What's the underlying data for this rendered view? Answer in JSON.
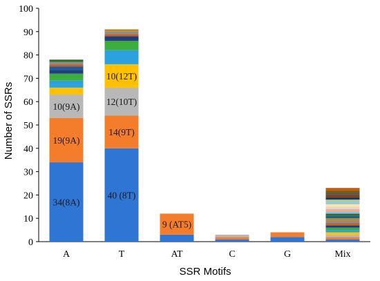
{
  "chart_data": {
    "type": "bar",
    "stacked": true,
    "categories": [
      "A",
      "T",
      "AT",
      "C",
      "G",
      "Mix"
    ],
    "xlabel": "SSR Motifs",
    "ylabel": "Number of SSRs",
    "ylim": [
      0,
      100
    ],
    "yticks": [
      0,
      10,
      20,
      30,
      40,
      50,
      60,
      70,
      80,
      90,
      100
    ],
    "grid": false,
    "bars": [
      {
        "category": "A",
        "total": 78,
        "segments": [
          {
            "value": 34,
            "color": "#2F75D3",
            "label": "34(8A)"
          },
          {
            "value": 19,
            "color": "#F47D2C",
            "label": "19(9A)"
          },
          {
            "value": 10,
            "color": "#B8B8B8",
            "label": "10(9A)"
          },
          {
            "value": 3,
            "color": "#FFC000",
            "label": ""
          },
          {
            "value": 3,
            "color": "#2BA2DD",
            "label": ""
          },
          {
            "value": 3,
            "color": "#3DAE3D",
            "label": ""
          },
          {
            "value": 1.5,
            "color": "#1F3E7A",
            "label": ""
          },
          {
            "value": 1.5,
            "color": "#1C5B9C",
            "label": ""
          },
          {
            "value": 1,
            "color": "#C5612A",
            "label": ""
          },
          {
            "value": 1,
            "color": "#8C8C8C",
            "label": ""
          },
          {
            "value": 1,
            "color": "#2A6E2A",
            "label": ""
          }
        ]
      },
      {
        "category": "T",
        "total": 91,
        "segments": [
          {
            "value": 40,
            "color": "#2F75D3",
            "label": "40 (8T)"
          },
          {
            "value": 14,
            "color": "#F47D2C",
            "label": "14(9T)"
          },
          {
            "value": 12,
            "color": "#B8B8B8",
            "label": "12(10T)"
          },
          {
            "value": 10,
            "color": "#FFC000",
            "label": "10(12T)"
          },
          {
            "value": 6,
            "color": "#2BA2DD",
            "label": ""
          },
          {
            "value": 4,
            "color": "#3DAE3D",
            "label": ""
          },
          {
            "value": 2,
            "color": "#1F3E7A",
            "label": ""
          },
          {
            "value": 1,
            "color": "#C5612A",
            "label": ""
          },
          {
            "value": 1,
            "color": "#8C8C8C",
            "label": ""
          },
          {
            "value": 1,
            "color": "#B58B2A",
            "label": ""
          }
        ]
      },
      {
        "category": "AT",
        "total": 12,
        "segments": [
          {
            "value": 3,
            "color": "#2F75D3",
            "label": ""
          },
          {
            "value": 9,
            "color": "#F47D2C",
            "label": "9 (AT5)"
          }
        ]
      },
      {
        "category": "C",
        "total": 3,
        "segments": [
          {
            "value": 1,
            "color": "#2F75D3",
            "label": ""
          },
          {
            "value": 1,
            "color": "#F47D2C",
            "label": ""
          },
          {
            "value": 1,
            "color": "#B8B8B8",
            "label": ""
          }
        ]
      },
      {
        "category": "G",
        "total": 4,
        "segments": [
          {
            "value": 2,
            "color": "#2F75D3",
            "label": ""
          },
          {
            "value": 2,
            "color": "#F47D2C",
            "label": ""
          }
        ]
      },
      {
        "category": "Mix",
        "total": 23,
        "segments": [
          {
            "value": 1,
            "color": "#2F75D3",
            "label": ""
          },
          {
            "value": 1,
            "color": "#F47D2C",
            "label": ""
          },
          {
            "value": 1,
            "color": "#B8B8B8",
            "label": ""
          },
          {
            "value": 1,
            "color": "#FFC000",
            "label": ""
          },
          {
            "value": 1,
            "color": "#2BA2DD",
            "label": ""
          },
          {
            "value": 1,
            "color": "#3DAE3D",
            "label": ""
          },
          {
            "value": 1,
            "color": "#1F3E7A",
            "label": ""
          },
          {
            "value": 1,
            "color": "#C5612A",
            "label": ""
          },
          {
            "value": 1,
            "color": "#8C8C8C",
            "label": ""
          },
          {
            "value": 1,
            "color": "#B58B2A",
            "label": ""
          },
          {
            "value": 1,
            "color": "#1C5B9C",
            "label": ""
          },
          {
            "value": 1,
            "color": "#2A6E2A",
            "label": ""
          },
          {
            "value": 1,
            "color": "#9FB8E8",
            "label": ""
          },
          {
            "value": 1,
            "color": "#F4B183",
            "label": ""
          },
          {
            "value": 1,
            "color": "#D9D9D9",
            "label": ""
          },
          {
            "value": 1,
            "color": "#FFE699",
            "label": ""
          },
          {
            "value": 1,
            "color": "#9DC3E6",
            "label": ""
          },
          {
            "value": 1,
            "color": "#A9D18E",
            "label": ""
          },
          {
            "value": 1,
            "color": "#203864",
            "label": ""
          },
          {
            "value": 1,
            "color": "#843C0C",
            "label": ""
          },
          {
            "value": 1,
            "color": "#595959",
            "label": ""
          },
          {
            "value": 1,
            "color": "#7F6000",
            "label": ""
          },
          {
            "value": 1,
            "color": "#C55A11",
            "label": ""
          }
        ]
      }
    ]
  }
}
